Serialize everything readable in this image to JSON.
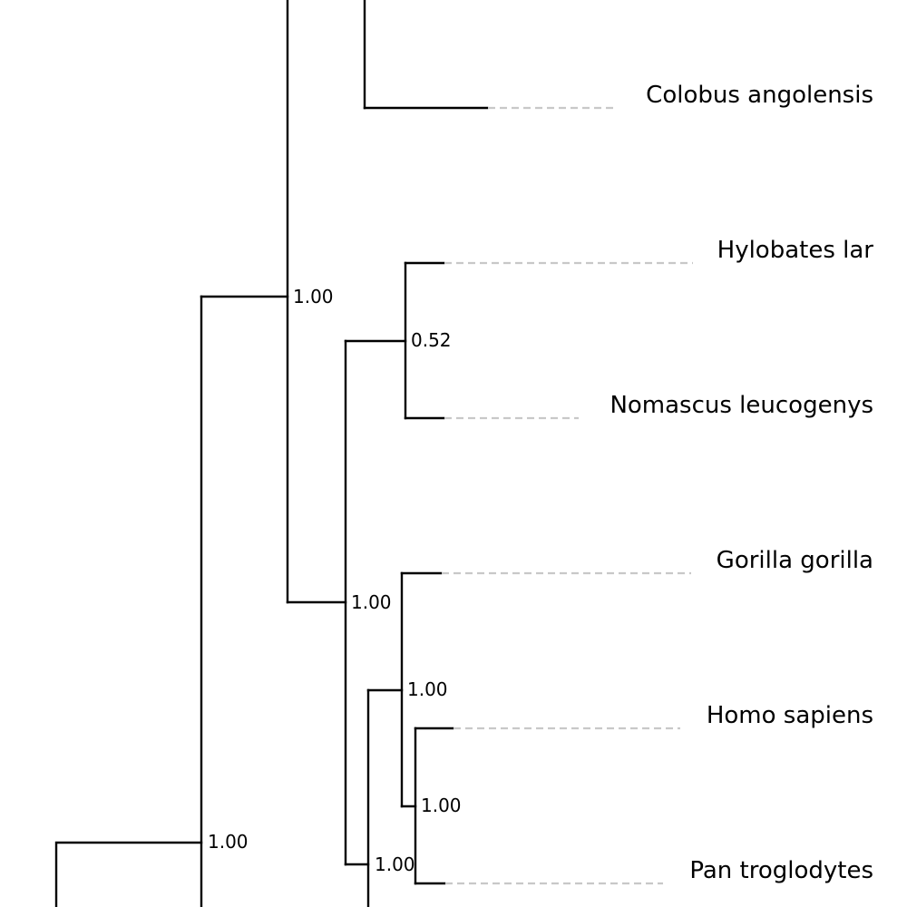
{
  "colors": {
    "branch": "#000000",
    "leader": "#c8c8c8",
    "text": "#000000",
    "background": "#ffffff"
  },
  "tree": {
    "taxa": [
      {
        "id": "colobus",
        "label": "Colobus angolensis"
      },
      {
        "id": "hylobates",
        "label": "Hylobates lar"
      },
      {
        "id": "nomascus",
        "label": "Nomascus leucogenys"
      },
      {
        "id": "gorilla",
        "label": "Gorilla gorilla"
      },
      {
        "id": "homo",
        "label": "Homo sapiens"
      },
      {
        "id": "pan",
        "label": "Pan troglodytes"
      }
    ],
    "support_values": [
      {
        "id": "node-old-world-monkeys-apes",
        "value": "1.00"
      },
      {
        "id": "node-gibbons",
        "value": "0.52"
      },
      {
        "id": "node-hominoids",
        "value": "1.00"
      },
      {
        "id": "node-homininae",
        "value": "1.00"
      },
      {
        "id": "node-homo-pan",
        "value": "1.00"
      },
      {
        "id": "node-great-apes",
        "value": "1.00"
      },
      {
        "id": "node-catarrhini",
        "value": "1.00"
      }
    ]
  }
}
